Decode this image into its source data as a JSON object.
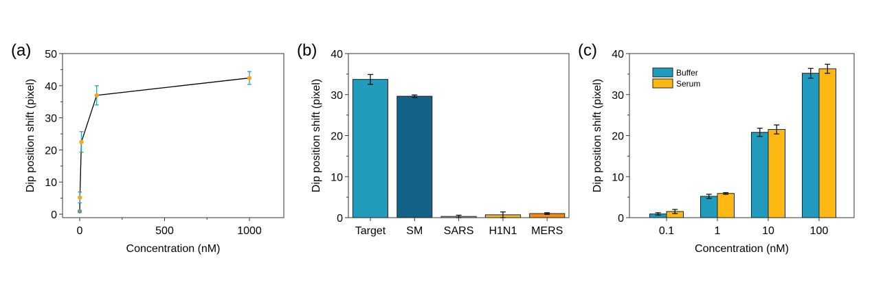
{
  "chart_data": [
    {
      "panel_label": "(a)",
      "type": "scatter",
      "xlabel": "Concentration (nM)",
      "ylabel": "Dip position shift (pixel)",
      "xlim": [
        -100,
        1200
      ],
      "ylim": [
        -1,
        50
      ],
      "xticks": [
        0,
        500,
        1000
      ],
      "yticks": [
        0,
        10,
        20,
        30,
        40,
        50
      ],
      "connected": true,
      "points": [
        {
          "x": 0.1,
          "y": 0.9,
          "err": 0.3
        },
        {
          "x": 1,
          "y": 5.2,
          "err": 1.7
        },
        {
          "x": 10,
          "y": 22.5,
          "err": 3.2
        },
        {
          "x": 100,
          "y": 37.0,
          "err": 3.0
        },
        {
          "x": 1000,
          "y": 42.4,
          "err": 2.0
        }
      ],
      "colors": {
        "marker": "#f5a623",
        "error": "#2a9fc0",
        "line": "#000000"
      }
    },
    {
      "panel_label": "(b)",
      "type": "bar",
      "xlabel": "",
      "ylabel": "Dip position shift (pixel)",
      "ylim": [
        0,
        40
      ],
      "yticks": [
        0,
        10,
        20,
        30,
        40
      ],
      "categories": [
        "Target",
        "SM",
        "SARS",
        "H1N1",
        "MERS"
      ],
      "values": [
        33.7,
        29.6,
        0.3,
        0.7,
        1.0
      ],
      "errors": [
        1.2,
        0.3,
        0.3,
        0.7,
        0.2
      ],
      "colors": [
        "#229cbd",
        "#136287",
        "#a8c4d0",
        "#f5b52a",
        "#f38a12"
      ]
    },
    {
      "panel_label": "(c)",
      "type": "bar",
      "xlabel": "Concentration (nM)",
      "ylabel": "Dip position shift (pixel)",
      "ylim": [
        0,
        40
      ],
      "yticks": [
        0,
        10,
        20,
        30,
        40
      ],
      "categories": [
        "0.1",
        "1",
        "10",
        "100"
      ],
      "legend_position": "top-left",
      "series": [
        {
          "name": "Buffer",
          "values": [
            0.9,
            5.2,
            20.8,
            35.2
          ],
          "errors": [
            0.3,
            0.5,
            1.0,
            1.2
          ],
          "color": "#209bbd"
        },
        {
          "name": "Serum",
          "values": [
            1.5,
            5.9,
            21.5,
            36.3
          ],
          "errors": [
            0.5,
            0.2,
            1.1,
            1.1
          ],
          "color": "#fdb813"
        }
      ]
    }
  ]
}
